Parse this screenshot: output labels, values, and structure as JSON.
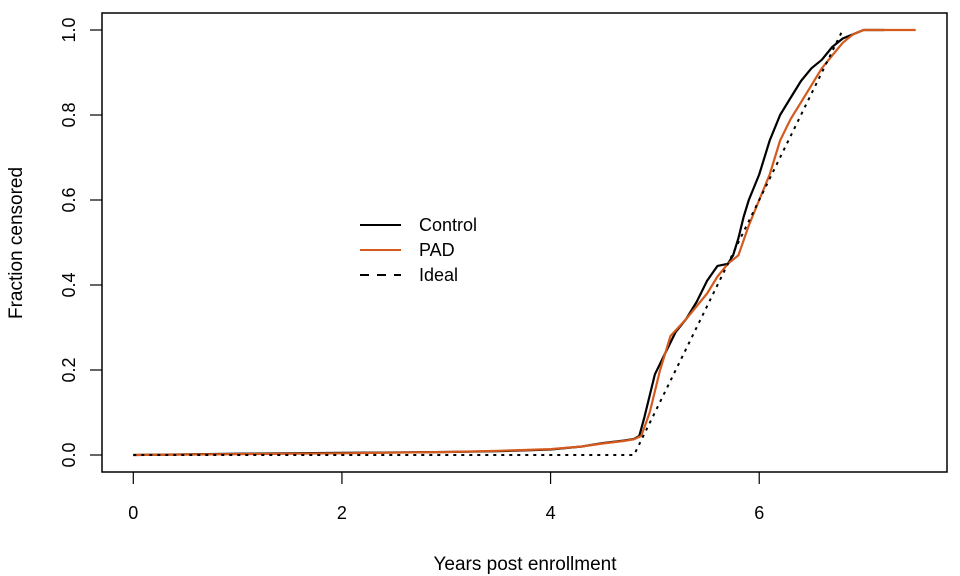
{
  "chart_data": {
    "type": "line",
    "title": "",
    "xlabel": "Years post enrollment",
    "ylabel": "Fraction censored",
    "xlim": [
      -0.3,
      7.8
    ],
    "ylim": [
      -0.04,
      1.04
    ],
    "xticks": [
      {
        "value": 0,
        "label": "0"
      },
      {
        "value": 2,
        "label": "2"
      },
      {
        "value": 4,
        "label": "4"
      },
      {
        "value": 6,
        "label": "6"
      }
    ],
    "yticks": [
      {
        "value": 0.0,
        "label": "0.0"
      },
      {
        "value": 0.2,
        "label": "0.2"
      },
      {
        "value": 0.4,
        "label": "0.4"
      },
      {
        "value": 0.6,
        "label": "0.6"
      },
      {
        "value": 0.8,
        "label": "0.8"
      },
      {
        "value": 1.0,
        "label": "1.0"
      }
    ],
    "grid": false,
    "legend_position": "center-left",
    "series": [
      {
        "name": "Control",
        "color": "#000000",
        "dash": "solid",
        "points": [
          [
            0,
            0
          ],
          [
            1,
            0.003
          ],
          [
            2,
            0.005
          ],
          [
            3,
            0.007
          ],
          [
            3.5,
            0.009
          ],
          [
            4,
            0.013
          ],
          [
            4.3,
            0.02
          ],
          [
            4.5,
            0.028
          ],
          [
            4.7,
            0.034
          ],
          [
            4.8,
            0.038
          ],
          [
            4.85,
            0.045
          ],
          [
            4.9,
            0.09
          ],
          [
            4.95,
            0.14
          ],
          [
            5.0,
            0.19
          ],
          [
            5.1,
            0.24
          ],
          [
            5.2,
            0.29
          ],
          [
            5.3,
            0.32
          ],
          [
            5.4,
            0.36
          ],
          [
            5.5,
            0.41
          ],
          [
            5.6,
            0.445
          ],
          [
            5.7,
            0.45
          ],
          [
            5.75,
            0.47
          ],
          [
            5.8,
            0.51
          ],
          [
            5.85,
            0.56
          ],
          [
            5.9,
            0.6
          ],
          [
            6.0,
            0.66
          ],
          [
            6.1,
            0.74
          ],
          [
            6.2,
            0.8
          ],
          [
            6.3,
            0.84
          ],
          [
            6.4,
            0.88
          ],
          [
            6.5,
            0.91
          ],
          [
            6.6,
            0.93
          ],
          [
            6.7,
            0.96
          ],
          [
            6.8,
            0.98
          ],
          [
            6.9,
            0.99
          ],
          [
            7.0,
            1.0
          ],
          [
            7.2,
            1.0
          ]
        ]
      },
      {
        "name": "PAD",
        "color": "#d45a1e",
        "dash": "solid",
        "points": [
          [
            0,
            0
          ],
          [
            1,
            0.002
          ],
          [
            2,
            0.004
          ],
          [
            3,
            0.007
          ],
          [
            3.5,
            0.01
          ],
          [
            4,
            0.014
          ],
          [
            4.3,
            0.02
          ],
          [
            4.5,
            0.027
          ],
          [
            4.7,
            0.033
          ],
          [
            4.8,
            0.037
          ],
          [
            4.87,
            0.045
          ],
          [
            4.95,
            0.1
          ],
          [
            5.05,
            0.2
          ],
          [
            5.15,
            0.28
          ],
          [
            5.3,
            0.32
          ],
          [
            5.4,
            0.35
          ],
          [
            5.5,
            0.38
          ],
          [
            5.6,
            0.42
          ],
          [
            5.7,
            0.45
          ],
          [
            5.8,
            0.47
          ],
          [
            5.9,
            0.54
          ],
          [
            6.0,
            0.6
          ],
          [
            6.1,
            0.66
          ],
          [
            6.2,
            0.74
          ],
          [
            6.3,
            0.79
          ],
          [
            6.4,
            0.83
          ],
          [
            6.5,
            0.87
          ],
          [
            6.6,
            0.91
          ],
          [
            6.7,
            0.94
          ],
          [
            6.8,
            0.97
          ],
          [
            6.9,
            0.99
          ],
          [
            7.0,
            1.0
          ],
          [
            7.5,
            1.0
          ]
        ]
      },
      {
        "name": "Ideal",
        "color": "#000000",
        "dash": "dotted",
        "points": [
          [
            0,
            0
          ],
          [
            4.8,
            0
          ],
          [
            6.8,
            1.0
          ]
        ]
      }
    ]
  }
}
